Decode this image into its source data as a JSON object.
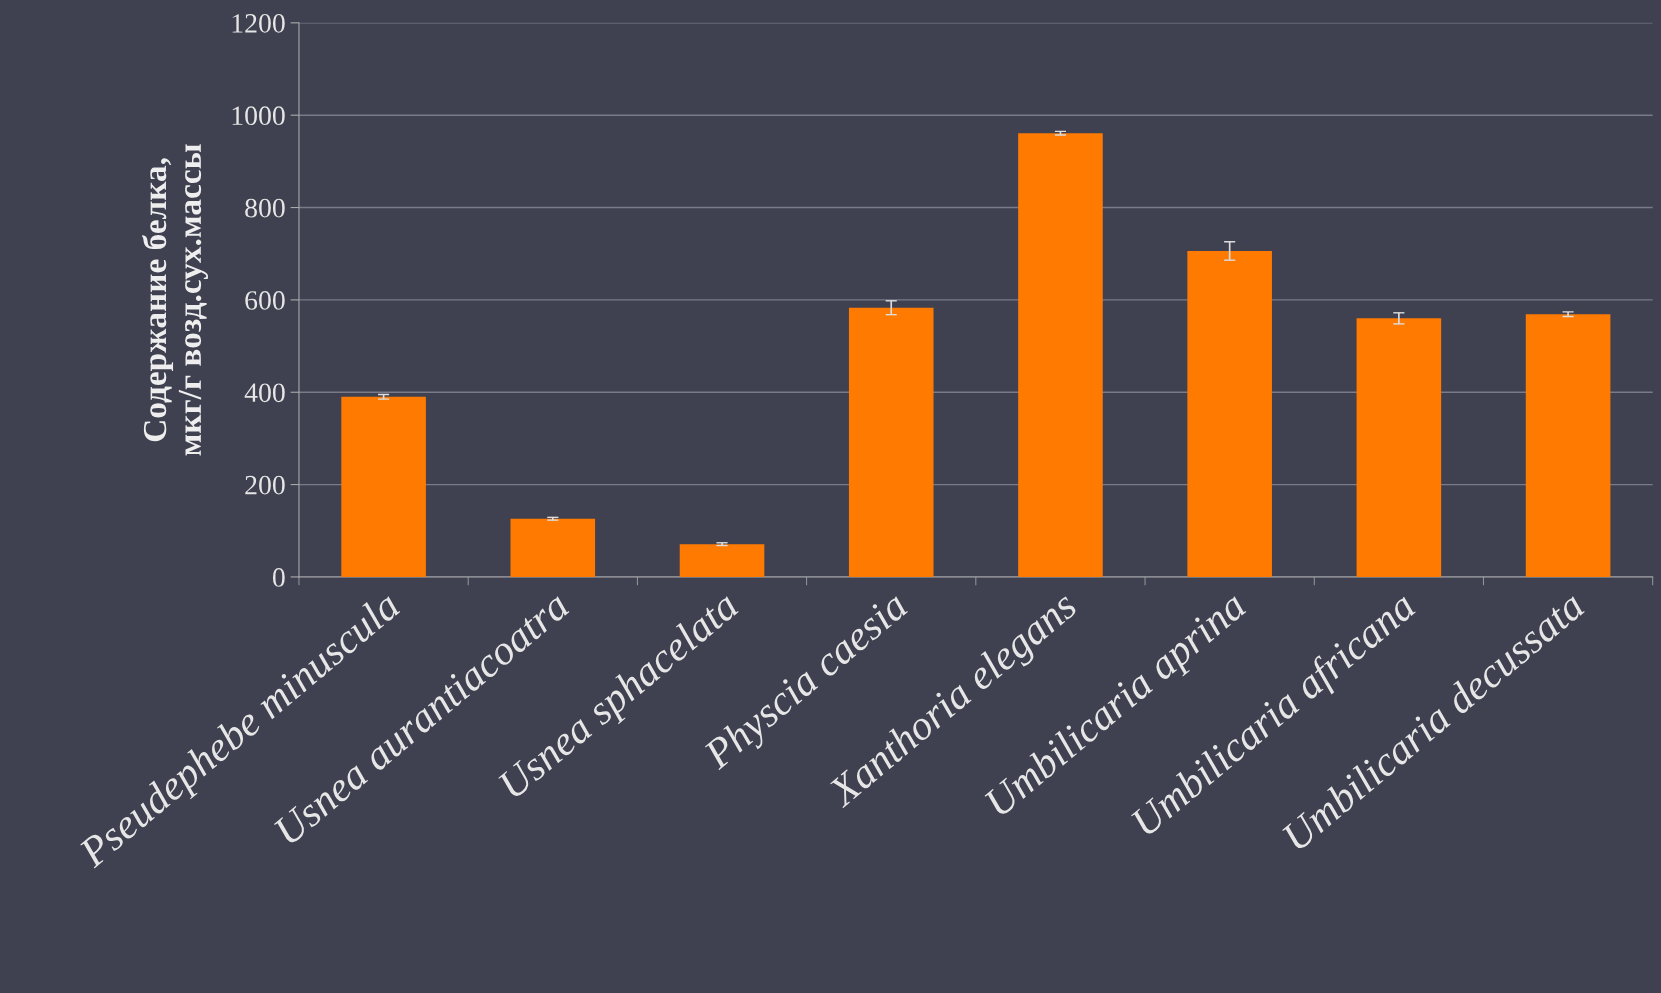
{
  "chart_data": {
    "type": "bar",
    "ylabel": "Содержание белка,\nмкг/г возд.сух.массы",
    "categories": [
      "Pseudephebe minuscula",
      "Usnea aurantiacoatra",
      "Usnea sphacelata",
      "Physcia caesia",
      "Xanthoria elegans",
      "Umbilicaria aprina",
      "Umbilicaria africana",
      "Umbilicaria decussata"
    ],
    "values": [
      390,
      126,
      71,
      583,
      961,
      706,
      560,
      569
    ],
    "errors": [
      5,
      3,
      3,
      15,
      4,
      20,
      12,
      5
    ],
    "color": "#ff7a00",
    "ylim": [
      0,
      1200
    ],
    "yticks": [
      0,
      200,
      400,
      600,
      800,
      1000,
      1200
    ],
    "grid": "y"
  }
}
